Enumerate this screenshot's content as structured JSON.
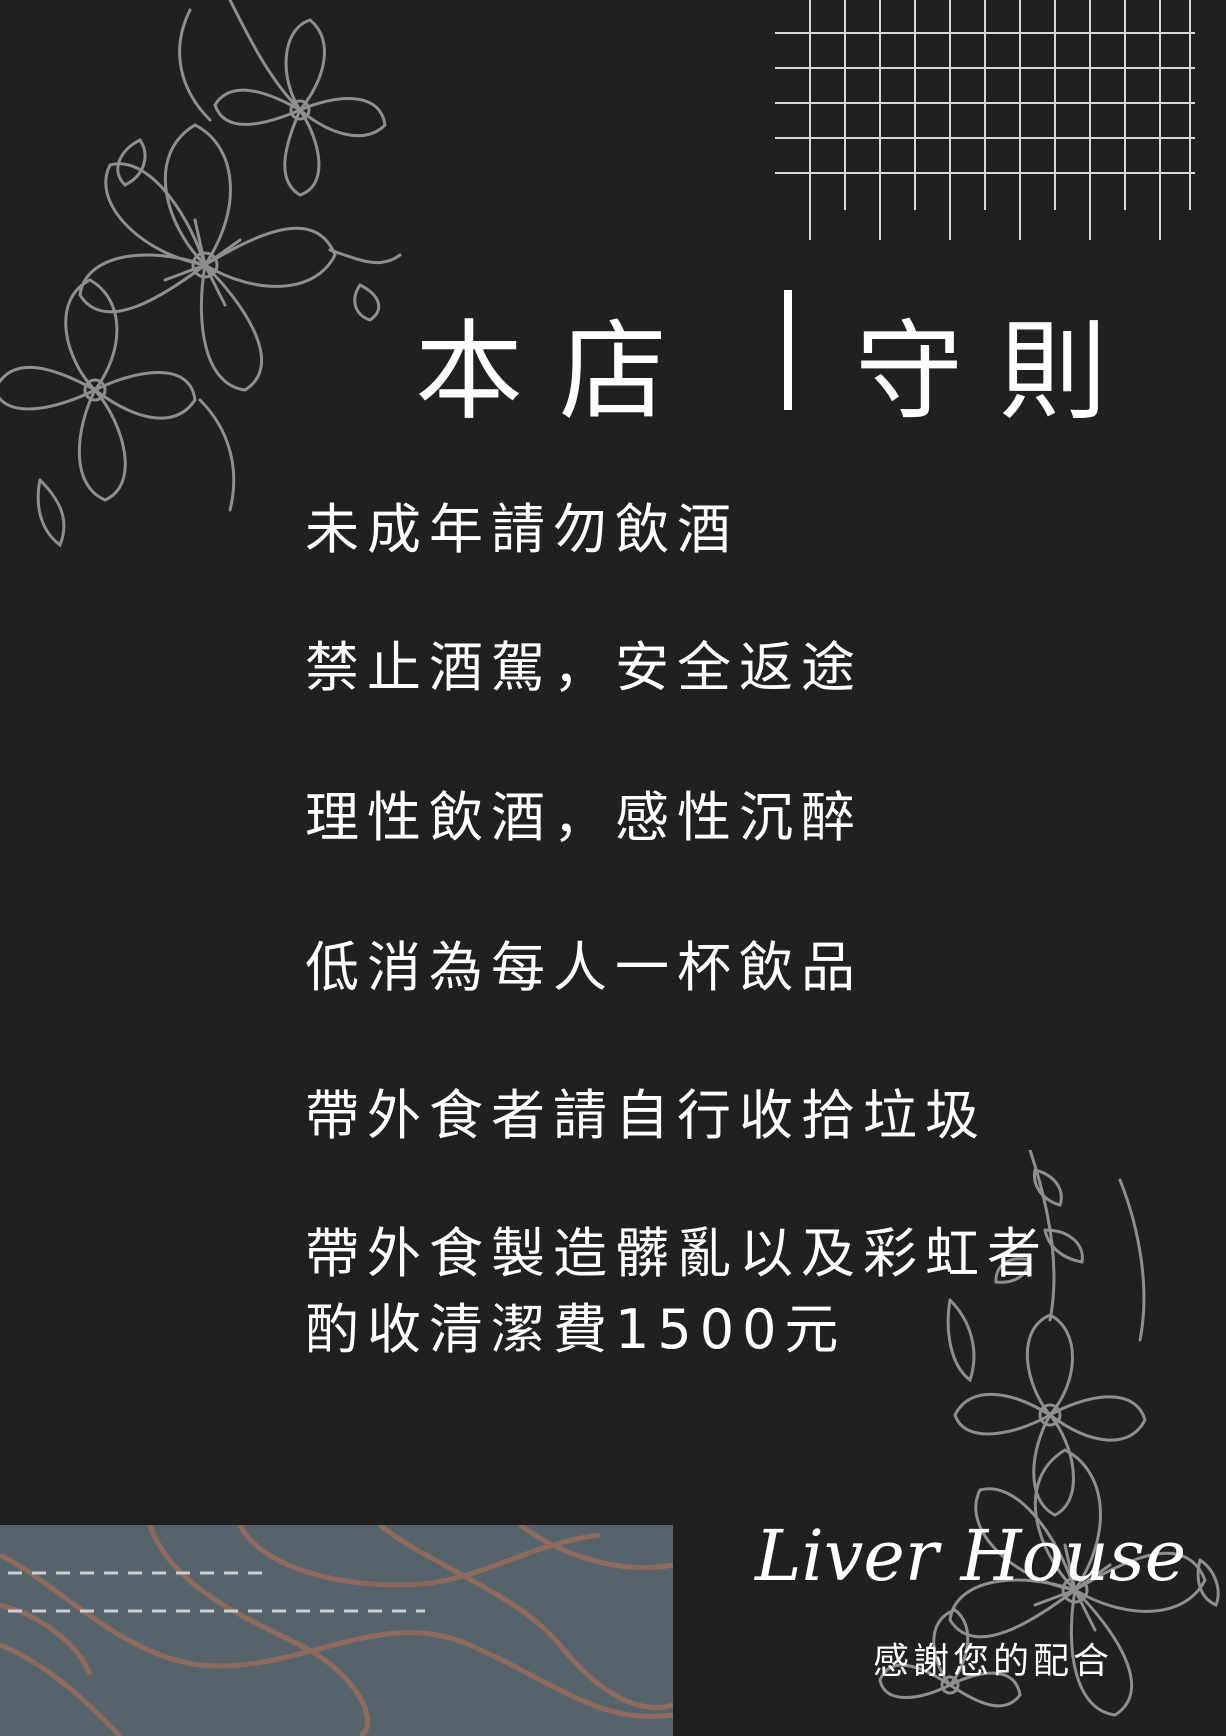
{
  "title": {
    "left": "本店",
    "right": "守則"
  },
  "rules": [
    "未成年請勿飲酒",
    "禁止酒駕，安全返途",
    "理性飲酒，感性沉醉",
    "低消為每人一杯飲品",
    "帶外食者請自行收拾垃圾",
    "帶外食製造髒亂以及彩虹者",
    "酌收清潔費1500元"
  ],
  "footer": {
    "brand": "Liver House",
    "thanks": "感謝您的配合"
  },
  "colors": {
    "background": "#202020",
    "footer_block": "#56636b",
    "stripe": "#8e6a5e",
    "flower_stroke": "#8f8f8f",
    "text": "#ffffff"
  },
  "icons": {
    "top_left": "flower-cluster-icon",
    "bottom_right": "flower-cluster-icon",
    "top_right": "grid-pattern-icon"
  }
}
